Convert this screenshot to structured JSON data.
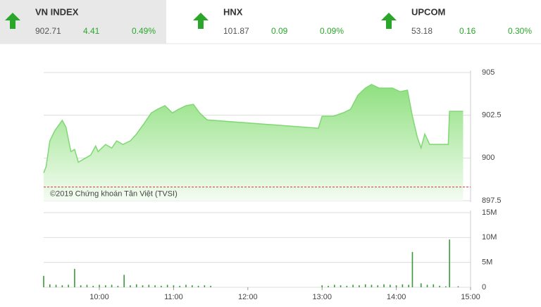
{
  "header": {
    "indices": [
      {
        "name": "VN INDEX",
        "value": 902.71,
        "change": 4.41,
        "percent": "0.49%"
      },
      {
        "name": "HNX",
        "value": 101.87,
        "change": 0.09,
        "percent": "0.09%"
      },
      {
        "name": "UPCOM",
        "value": 53.18,
        "change": 0.16,
        "percent": "0.30%"
      }
    ]
  },
  "chart_data": [
    {
      "type": "area",
      "annotation": "©2019 Chứng khoán Tân Việt (TVSI)",
      "color": "#7fd873",
      "reference_color": "#d33",
      "reference": 898.3,
      "xlim": [
        555,
        900
      ],
      "ylim": [
        897.5,
        905
      ],
      "yticks": [
        897.5,
        900,
        902.5,
        905
      ],
      "grid": true,
      "x": [
        555,
        557,
        560,
        564,
        570,
        573,
        577,
        580,
        583,
        588,
        593,
        597,
        599,
        605,
        610,
        614,
        619,
        625,
        630,
        636,
        642,
        647,
        653,
        659,
        664,
        670,
        676,
        681,
        687,
        777,
        780,
        789,
        797,
        803,
        809,
        815,
        820,
        826,
        832,
        837,
        843,
        849,
        853,
        857,
        860,
        863,
        867,
        874,
        882,
        883,
        894
      ],
      "values": [
        899.13,
        899.5,
        901.0,
        901.6,
        902.2,
        901.8,
        900.37,
        900.5,
        899.75,
        899.96,
        900.17,
        900.7,
        900.37,
        900.79,
        900.58,
        901.0,
        900.79,
        901.0,
        901.4,
        902.0,
        902.64,
        902.85,
        903.06,
        902.64,
        902.85,
        903.06,
        903.14,
        902.64,
        902.23,
        901.74,
        902.44,
        902.44,
        902.64,
        902.85,
        903.68,
        904.09,
        904.3,
        904.09,
        904.09,
        904.09,
        903.88,
        903.97,
        902.44,
        901.2,
        900.58,
        901.4,
        900.79,
        900.79,
        900.79,
        902.73,
        902.73
      ]
    },
    {
      "type": "bar",
      "color": "#3a9a3a",
      "xlim": [
        555,
        900
      ],
      "ylim": [
        0,
        15000000
      ],
      "yticks": [
        0,
        {
          "value": 5000000,
          "label": "5M"
        },
        {
          "value": 10000000,
          "label": "10M"
        },
        {
          "value": 15000000,
          "label": "15M"
        }
      ],
      "grid": true,
      "xticks": [
        {
          "value": 600,
          "label": "10:00"
        },
        {
          "value": 660,
          "label": "11:00"
        },
        {
          "value": 720,
          "label": "12:00"
        },
        {
          "value": 780,
          "label": "13:00"
        },
        {
          "value": 840,
          "label": "14:00"
        },
        {
          "value": 900,
          "label": "15:00"
        }
      ],
      "x": [
        555,
        560,
        565,
        570,
        575,
        580,
        585,
        590,
        595,
        600,
        605,
        610,
        615,
        620,
        625,
        630,
        635,
        640,
        645,
        650,
        655,
        660,
        665,
        670,
        675,
        680,
        685,
        690,
        780,
        785,
        790,
        795,
        800,
        805,
        810,
        815,
        820,
        825,
        830,
        835,
        840,
        845,
        850,
        853,
        860,
        865,
        870,
        875,
        880,
        883,
        890
      ],
      "values": [
        2300000,
        600000,
        500000,
        400000,
        500000,
        3700000,
        400000,
        500000,
        300000,
        500000,
        400000,
        500000,
        300000,
        2500000,
        400000,
        600000,
        400000,
        500000,
        400000,
        300000,
        500000,
        400000,
        300000,
        500000,
        400000,
        300000,
        400000,
        300000,
        400000,
        300000,
        500000,
        400000,
        300000,
        500000,
        400000,
        600000,
        500000,
        400000,
        600000,
        500000,
        400000,
        600000,
        500000,
        7100000,
        800000,
        500000,
        600000,
        300000,
        200000,
        9600000,
        200000
      ]
    }
  ]
}
